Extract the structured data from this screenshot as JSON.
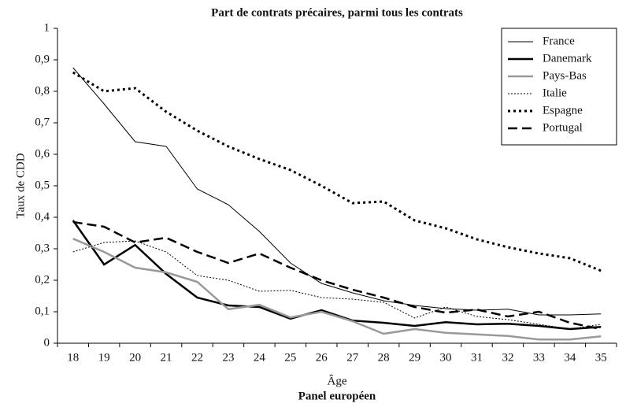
{
  "chart_data": {
    "type": "line",
    "title": "Part de contrats précaires, parmi tous les contrats",
    "y_label": "Taux de CDD",
    "x_label": "Âge",
    "subtitle": "Panel européen",
    "categories": [
      "18",
      "19",
      "20",
      "21",
      "22",
      "23",
      "24",
      "25",
      "26",
      "27",
      "28",
      "29",
      "30",
      "31",
      "32",
      "33",
      "34",
      "35"
    ],
    "series": [
      {
        "name": "France",
        "color": "#000000",
        "width": 1,
        "style": "solid",
        "values": [
          0.875,
          0.76,
          0.64,
          0.625,
          0.49,
          0.44,
          0.355,
          0.255,
          0.19,
          0.16,
          0.135,
          0.12,
          0.11,
          0.105,
          0.108,
          0.09,
          0.09,
          0.093
        ]
      },
      {
        "name": "Danemark",
        "color": "#000000",
        "width": 2.5,
        "style": "solid",
        "values": [
          0.39,
          0.25,
          0.312,
          0.22,
          0.145,
          0.12,
          0.115,
          0.078,
          0.105,
          0.072,
          0.065,
          0.055,
          0.067,
          0.06,
          0.062,
          0.055,
          0.045,
          0.052
        ]
      },
      {
        "name": "Pays-Bas",
        "color": "#999999",
        "width": 2.5,
        "style": "solid",
        "values": [
          0.332,
          0.29,
          0.24,
          0.225,
          0.195,
          0.108,
          0.122,
          0.082,
          0.1,
          0.07,
          0.03,
          0.045,
          0.033,
          0.028,
          0.023,
          0.012,
          0.012,
          0.022
        ]
      },
      {
        "name": "Italie",
        "color": "#000000",
        "width": 1,
        "style": "dotted",
        "values": [
          0.29,
          0.32,
          0.325,
          0.29,
          0.215,
          0.2,
          0.165,
          0.168,
          0.145,
          0.14,
          0.13,
          0.08,
          0.115,
          0.085,
          0.075,
          0.06,
          0.045,
          0.06
        ]
      },
      {
        "name": "Espagne",
        "color": "#000000",
        "width": 3,
        "style": "dotted",
        "values": [
          0.86,
          0.8,
          0.81,
          0.735,
          0.675,
          0.625,
          0.585,
          0.55,
          0.5,
          0.445,
          0.45,
          0.39,
          0.365,
          0.33,
          0.305,
          0.285,
          0.27,
          0.23
        ]
      },
      {
        "name": "Portugal",
        "color": "#000000",
        "width": 2.5,
        "style": "dashed",
        "values": [
          0.385,
          0.37,
          0.32,
          0.335,
          0.29,
          0.255,
          0.285,
          0.24,
          0.2,
          0.17,
          0.145,
          0.115,
          0.097,
          0.107,
          0.085,
          0.1,
          0.065,
          0.045
        ]
      }
    ],
    "ylim": [
      0,
      1
    ],
    "yticks": [
      0,
      {
        "value": 0.1,
        "label": "0,1"
      },
      {
        "value": 0.2,
        "label": "0,2"
      },
      {
        "value": 0.3,
        "label": "0,3"
      },
      {
        "value": 0.4,
        "label": "0,4"
      },
      {
        "value": 0.5,
        "label": "0,5"
      },
      {
        "value": 0.6,
        "label": "0,6"
      },
      {
        "value": 0.7,
        "label": "0,7"
      },
      {
        "value": 0.8,
        "label": "0,8"
      },
      {
        "value": 0.9,
        "label": "0,9"
      },
      1
    ],
    "grid": false,
    "legend": "top-right"
  }
}
